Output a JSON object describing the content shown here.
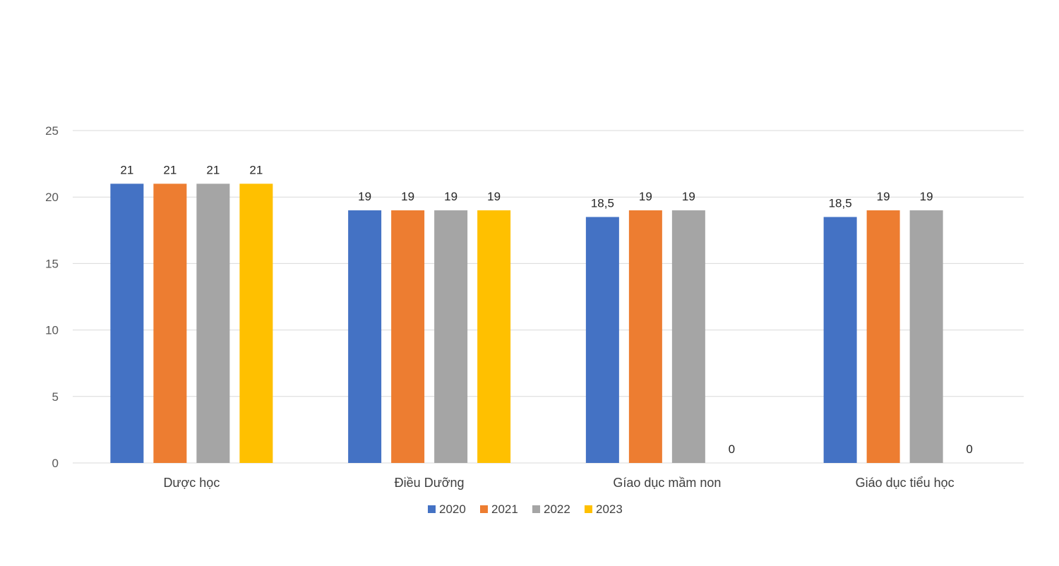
{
  "chart_data": {
    "type": "bar",
    "title": "",
    "xlabel": "",
    "ylabel": "",
    "ylim": [
      0,
      25
    ],
    "yticks": [
      0,
      5,
      10,
      15,
      20,
      25
    ],
    "grid": true,
    "legend_position": "bottom",
    "categories": [
      "Dược học",
      "Điều Dưỡng",
      "Gíao dục mầm non",
      "Giáo dục tiểu học"
    ],
    "series": [
      {
        "name": "2020",
        "color": "#4472C4",
        "values": [
          21,
          19,
          18.5,
          18.5
        ],
        "labels": [
          "21",
          "19",
          "18,5",
          "18,5"
        ]
      },
      {
        "name": "2021",
        "color": "#ED7D31",
        "values": [
          21,
          19,
          19,
          19
        ],
        "labels": [
          "21",
          "19",
          "19",
          "19"
        ]
      },
      {
        "name": "2022",
        "color": "#A5A5A5",
        "values": [
          21,
          19,
          19,
          19
        ],
        "labels": [
          "21",
          "19",
          "19",
          "19"
        ]
      },
      {
        "name": "2023",
        "color": "#FFC000",
        "values": [
          21,
          19,
          0,
          0
        ],
        "labels": [
          "21",
          "19",
          "0",
          "0"
        ]
      }
    ]
  }
}
